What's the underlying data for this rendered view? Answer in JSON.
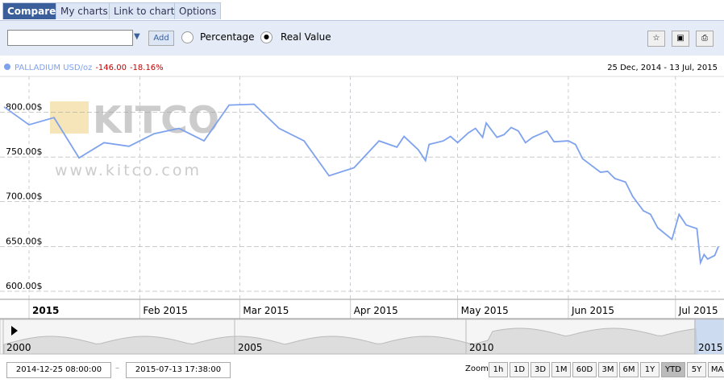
{
  "tabs": [
    "Compare",
    "My charts",
    "Link to chart",
    "Options"
  ],
  "toolbar": {
    "add": "Add",
    "options": [
      "Percentage",
      "Real Value"
    ]
  },
  "watermark": {
    "logo": "KITCO",
    "url": "www.kitco.com"
  },
  "chart_data": {
    "type": "line",
    "x": [
      "2014-12-25",
      "2015-01-01",
      "2015-01-08",
      "2015-01-15",
      "2015-01-22",
      "2015-01-29",
      "2015-02-05",
      "2015-02-12",
      "2015-02-19",
      "2015-02-26",
      "2015-03-05",
      "2015-03-12",
      "2015-03-19",
      "2015-03-26",
      "2015-04-02",
      "2015-04-09",
      "2015-04-14",
      "2015-04-16",
      "2015-04-20",
      "2015-04-22",
      "2015-04-23",
      "2015-04-27",
      "2015-04-29",
      "2015-05-01",
      "2015-05-04",
      "2015-05-06",
      "2015-05-08",
      "2015-05-09",
      "2015-05-12",
      "2015-05-14",
      "2015-05-16",
      "2015-05-18",
      "2015-05-20",
      "2015-05-22",
      "2015-05-26",
      "2015-05-28",
      "2015-06-01",
      "2015-06-03",
      "2015-06-05",
      "2015-06-10",
      "2015-06-12",
      "2015-06-14",
      "2015-06-17",
      "2015-06-19",
      "2015-06-22",
      "2015-06-24",
      "2015-06-26",
      "2015-06-30",
      "2015-07-02",
      "2015-07-04",
      "2015-07-07",
      "2015-07-08",
      "2015-07-09",
      "2015-07-10",
      "2015-07-12",
      "2015-07-13"
    ],
    "series": [
      {
        "name": "PALLADIUM USD/oz",
        "color": "#7ea2ee",
        "values": [
          806,
          786,
          794,
          749,
          766,
          762,
          776,
          782,
          768,
          808,
          809,
          782,
          768,
          729,
          738,
          768,
          761,
          773,
          758,
          746,
          764,
          768,
          773,
          766,
          777,
          782,
          772,
          788,
          772,
          775,
          783,
          779,
          766,
          772,
          779,
          767,
          768,
          764,
          748,
          733,
          734,
          726,
          722,
          706,
          690,
          686,
          671,
          658,
          686,
          674,
          670,
          632,
          641,
          636,
          640,
          650
        ]
      }
    ],
    "change": "-146.00",
    "change_pct": "-18.16%",
    "range_label": "25 Dec, 2014 - 13 Jul, 2015",
    "xlim": [
      "2014-12-25",
      "2015-07-13"
    ],
    "xticks": [
      {
        "value": "2015-01-01",
        "label": "2015"
      },
      {
        "value": "2015-02-01",
        "label": "Feb 2015"
      },
      {
        "value": "2015-03-01",
        "label": "Mar 2015"
      },
      {
        "value": "2015-04-01",
        "label": "Apr 2015"
      },
      {
        "value": "2015-05-01",
        "label": "May 2015"
      },
      {
        "value": "2015-06-01",
        "label": "Jun 2015"
      },
      {
        "value": "2015-07-01",
        "label": "Jul 2015"
      }
    ],
    "ylim": [
      591,
      840
    ],
    "yticks": [
      {
        "value": 600,
        "label": "600.00$"
      },
      {
        "value": 650,
        "label": "650.00$"
      },
      {
        "value": 700,
        "label": "700.00$"
      },
      {
        "value": 750,
        "label": "750.00$"
      },
      {
        "value": 800,
        "label": "800.00$"
      }
    ],
    "grid": true
  },
  "navigator": {
    "labels": [
      "2000",
      "2005",
      "2010",
      "2015"
    ]
  },
  "footer": {
    "from": "2014-12-25 08:00:00",
    "to": "2015-07-13 17:38:00",
    "zoom_label": "Zoom:",
    "zoom": [
      "1h",
      "1D",
      "3D",
      "1M",
      "60D",
      "3M",
      "6M",
      "1Y",
      "YTD",
      "5Y",
      "MAX"
    ],
    "active": "YTD"
  }
}
